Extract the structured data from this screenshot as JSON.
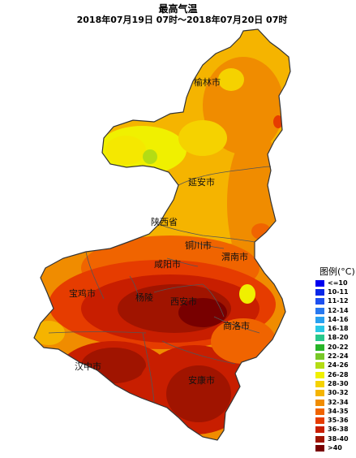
{
  "title": {
    "main": "最高气温",
    "sub": "2018年07月19日 07时～2018年07月20日 07时"
  },
  "labels": {
    "yulin": "榆林市",
    "yanan": "延安市",
    "province": "陕西省",
    "tongchuan": "铜川市",
    "weinan": "渭南市",
    "xianyang": "咸阳市",
    "baoji": "宝鸡市",
    "yangling": "杨陵",
    "xian": "西安市",
    "shangluo": "商洛市",
    "hanzhong": "汉中市",
    "ankang": "安康市"
  },
  "legend": {
    "title": "图例(°C)",
    "items": [
      {
        "label": "<=10",
        "color": "#0000f0"
      },
      {
        "label": "10-11",
        "color": "#0a28e8"
      },
      {
        "label": "11-12",
        "color": "#1e50f0"
      },
      {
        "label": "12-14",
        "color": "#2878f0"
      },
      {
        "label": "14-16",
        "color": "#28a0f0"
      },
      {
        "label": "16-18",
        "color": "#28c8e6"
      },
      {
        "label": "18-20",
        "color": "#28c88c"
      },
      {
        "label": "20-22",
        "color": "#28b428"
      },
      {
        "label": "22-24",
        "color": "#78c828"
      },
      {
        "label": "24-26",
        "color": "#b4dc14"
      },
      {
        "label": "26-28",
        "color": "#f0f000"
      },
      {
        "label": "28-30",
        "color": "#f5d200"
      },
      {
        "label": "30-32",
        "color": "#f5b400"
      },
      {
        "label": "32-34",
        "color": "#f08c00"
      },
      {
        "label": "34-35",
        "color": "#f06400"
      },
      {
        "label": "35-36",
        "color": "#e63c00"
      },
      {
        "label": "36-38",
        "color": "#c81e00"
      },
      {
        "label": "38-40",
        "color": "#a01400"
      },
      {
        "label": ">40",
        "color": "#780000"
      }
    ]
  }
}
